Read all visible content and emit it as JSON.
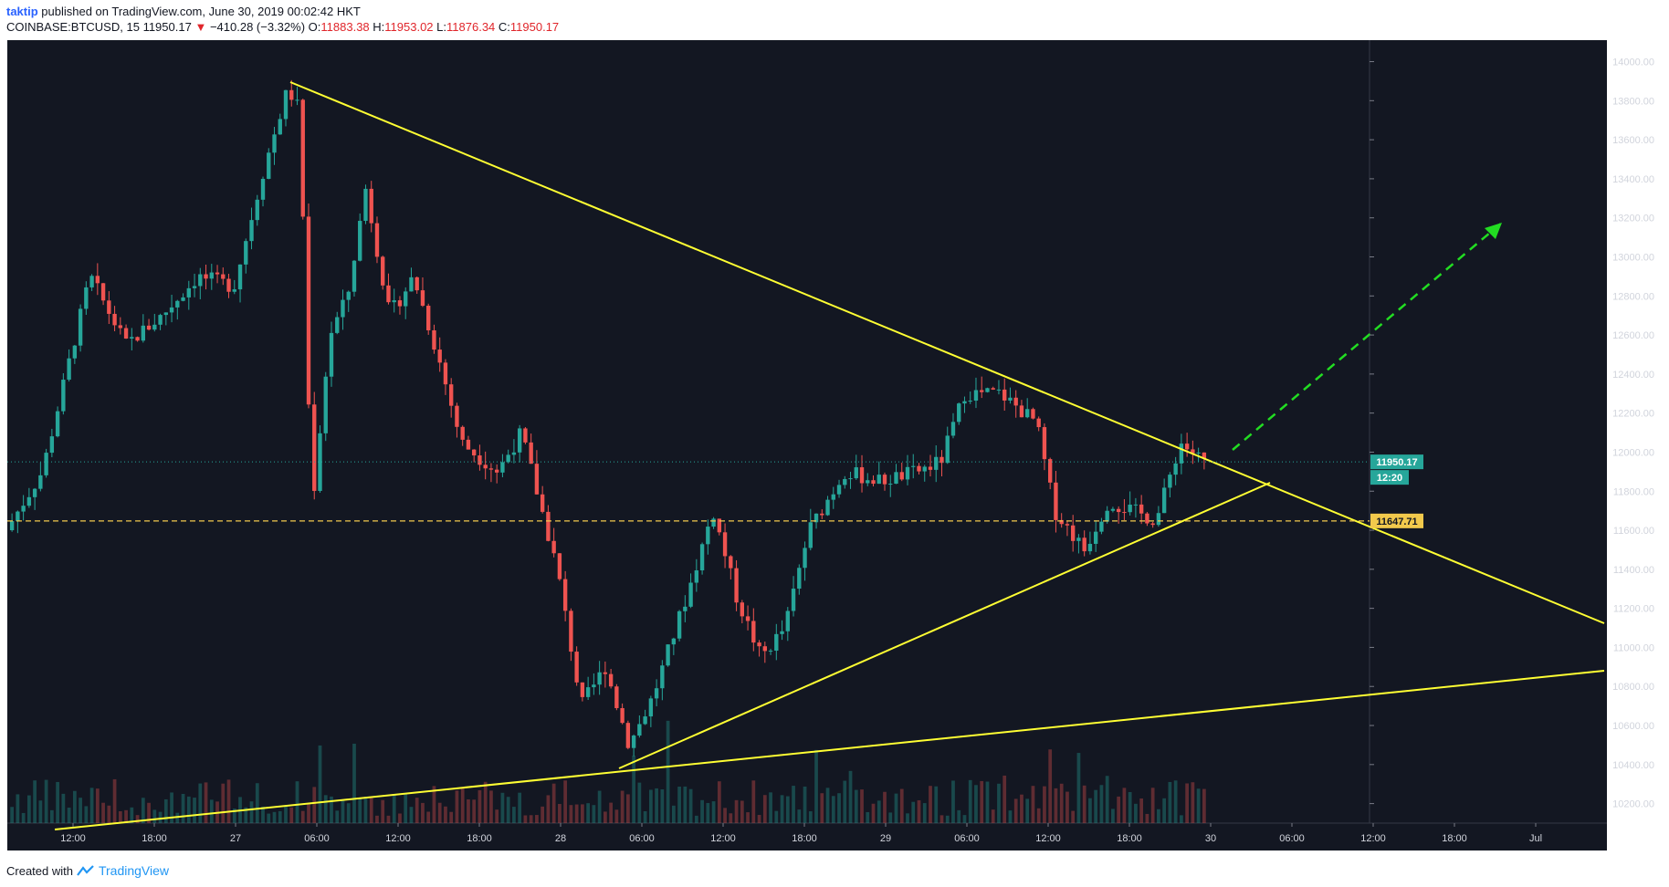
{
  "header": {
    "author": "taktip",
    "published": " published on TradingView.com, June 30, 2019 00:02:42 HKT",
    "symbol": "COINBASE:BTCUSD, 15",
    "price": "11950.17",
    "change_arrow": "▼",
    "change": "−410.28 (−3.32%)",
    "open_label": "O:",
    "open": "11883.38",
    "high_label": "H:",
    "high": "11953.02",
    "low_label": "L:",
    "low": "11876.34",
    "close_label": "C:",
    "close": "11950.17"
  },
  "footer": {
    "created_with": "Created with",
    "brand": "TradingView",
    "logo_icon": "tradingview-logo-icon"
  },
  "colors": {
    "background": "#131722",
    "up": "#26a69a",
    "down": "#ef5350",
    "trendline": "#ffff33",
    "projection": "#22dd22",
    "last_price": "#26a69a",
    "level": "#f2c94c"
  },
  "chart_data": {
    "type": "candlestick",
    "y_ticks": [
      "14000.00",
      "13800.00",
      "13600.00",
      "13400.00",
      "13200.00",
      "13000.00",
      "12800.00",
      "12600.00",
      "12400.00",
      "12200.00",
      "12000.00",
      "11800.00",
      "11600.00",
      "11400.00",
      "11200.00",
      "11000.00",
      "10800.00",
      "10600.00",
      "10400.00",
      "10200.00"
    ],
    "x_ticks": [
      "12:00",
      "18:00",
      "27",
      "06:00",
      "12:00",
      "18:00",
      "28",
      "06:00",
      "12:00",
      "18:00",
      "29",
      "06:00",
      "12:00",
      "18:00",
      "30",
      "06:00",
      "12:00",
      "18:00",
      "Jul"
    ],
    "ylim": [
      10100,
      14110
    ],
    "last_price": {
      "value": 11950.17,
      "label": "11950.17",
      "countdown": "12:20"
    },
    "horizontal_level": {
      "value": 11647.71,
      "label": "11647.71"
    },
    "price_path": [
      {
        "t": 0,
        "p": 11600
      },
      {
        "t": 0.03,
        "p": 11900
      },
      {
        "t": 0.07,
        "p": 12900
      },
      {
        "t": 0.1,
        "p": 12550
      },
      {
        "t": 0.13,
        "p": 12700
      },
      {
        "t": 0.16,
        "p": 12900
      },
      {
        "t": 0.19,
        "p": 12850
      },
      {
        "t": 0.215,
        "p": 13450
      },
      {
        "t": 0.235,
        "p": 13860
      },
      {
        "t": 0.245,
        "p": 13750
      },
      {
        "t": 0.255,
        "p": 11700
      },
      {
        "t": 0.27,
        "p": 12600
      },
      {
        "t": 0.285,
        "p": 12800
      },
      {
        "t": 0.3,
        "p": 13350
      },
      {
        "t": 0.32,
        "p": 12700
      },
      {
        "t": 0.34,
        "p": 12900
      },
      {
        "t": 0.36,
        "p": 12500
      },
      {
        "t": 0.38,
        "p": 12050
      },
      {
        "t": 0.41,
        "p": 11900
      },
      {
        "t": 0.43,
        "p": 12100
      },
      {
        "t": 0.46,
        "p": 11400
      },
      {
        "t": 0.48,
        "p": 10700
      },
      {
        "t": 0.5,
        "p": 10900
      },
      {
        "t": 0.52,
        "p": 10500
      },
      {
        "t": 0.54,
        "p": 10750
      },
      {
        "t": 0.57,
        "p": 11300
      },
      {
        "t": 0.59,
        "p": 11700
      },
      {
        "t": 0.61,
        "p": 11250
      },
      {
        "t": 0.63,
        "p": 10950
      },
      {
        "t": 0.65,
        "p": 11100
      },
      {
        "t": 0.67,
        "p": 11600
      },
      {
        "t": 0.7,
        "p": 11900
      },
      {
        "t": 0.73,
        "p": 11850
      },
      {
        "t": 0.76,
        "p": 11900
      },
      {
        "t": 0.78,
        "p": 11950
      },
      {
        "t": 0.8,
        "p": 12300
      },
      {
        "t": 0.83,
        "p": 12300
      },
      {
        "t": 0.86,
        "p": 12150
      },
      {
        "t": 0.875,
        "p": 11700
      },
      {
        "t": 0.9,
        "p": 11500
      },
      {
        "t": 0.92,
        "p": 11750
      },
      {
        "t": 0.94,
        "p": 11700
      },
      {
        "t": 0.96,
        "p": 11650
      },
      {
        "t": 0.98,
        "p": 12050
      },
      {
        "t": 1,
        "p": 11950
      }
    ]
  }
}
